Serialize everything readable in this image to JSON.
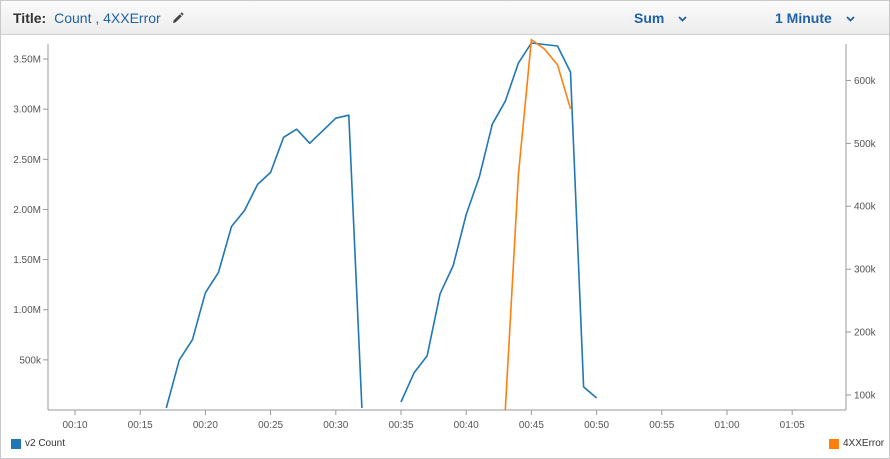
{
  "header": {
    "title_label": "Title:",
    "title_value": "Count , 4XXError",
    "stat_label": "Sum",
    "period_label": "1 Minute"
  },
  "icons": {
    "edit": "pencil-icon",
    "dropdown": "chevron-down-icon"
  },
  "colors": {
    "v2_count": "#1f77b4",
    "error_4xx": "#ff7f0e",
    "link": "#1f62a8"
  },
  "chart_data": {
    "type": "line",
    "grid": false,
    "x_ticks": [
      "00:10",
      "00:15",
      "00:20",
      "00:25",
      "00:30",
      "00:35",
      "00:40",
      "00:45",
      "00:50",
      "00:55",
      "01:00",
      "01:05"
    ],
    "y_left_ticks": [
      "500k",
      "1.00M",
      "1.50M",
      "2.00M",
      "2.50M",
      "3.00M",
      "3.50M"
    ],
    "y_right_ticks": [
      "100k",
      "200k",
      "300k",
      "400k",
      "500k",
      "600k"
    ],
    "y_left_range": [
      0,
      3650000
    ],
    "y_right_range": [
      76000,
      658000
    ],
    "series": [
      {
        "name": "v2 Count",
        "axis": "left",
        "legend_position": "bottom-left",
        "segments": [
          [
            [
              "00:17",
              20000
            ],
            [
              "00:18",
              500000
            ],
            [
              "00:19",
              700000
            ],
            [
              "00:20",
              1170000
            ],
            [
              "00:21",
              1370000
            ],
            [
              "00:22",
              1830000
            ],
            [
              "00:23",
              1990000
            ],
            [
              "00:24",
              2250000
            ],
            [
              "00:25",
              2370000
            ],
            [
              "00:26",
              2720000
            ],
            [
              "00:27",
              2800000
            ],
            [
              "00:28",
              2660000
            ],
            [
              "00:30",
              2910000
            ],
            [
              "00:31",
              2940000
            ],
            [
              "00:32",
              20000
            ]
          ],
          [
            [
              "00:35",
              80000
            ],
            [
              "00:36",
              370000
            ],
            [
              "00:37",
              540000
            ],
            [
              "00:38",
              1160000
            ],
            [
              "00:39",
              1440000
            ],
            [
              "00:40",
              1950000
            ],
            [
              "00:41",
              2320000
            ],
            [
              "00:42",
              2850000
            ],
            [
              "00:43",
              3080000
            ],
            [
              "00:44",
              3460000
            ],
            [
              "00:45",
              3660000
            ],
            [
              "00:47",
              3630000
            ],
            [
              "00:48",
              3370000
            ],
            [
              "00:49",
              230000
            ],
            [
              "00:50",
              120000
            ]
          ]
        ]
      },
      {
        "name": "4XXError",
        "axis": "right",
        "legend_position": "bottom-right",
        "segments": [
          [
            [
              "00:43",
              76000
            ],
            [
              "00:44",
              450000
            ],
            [
              "00:45",
              665000
            ],
            [
              "00:46",
              650000
            ],
            [
              "00:47",
              625000
            ],
            [
              "00:48",
              555000
            ]
          ]
        ]
      }
    ]
  }
}
